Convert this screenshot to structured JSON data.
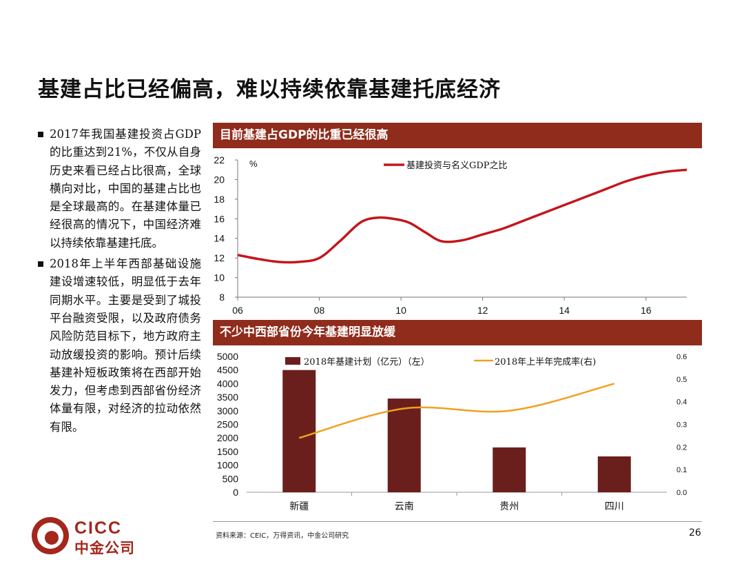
{
  "title": "基建占比已经偏高，难以持续依靠基建托底经济",
  "bullets": [
    "2017年我国基建投资占GDP的比重达到21%，不仅从自身历史来看已经占比很高，全球横向对比，中国的基建占比也是全球最高的。在基建体量已经很高的情况下，中国经济难以持续依靠基建托底。",
    "2018年上半年西部基础设施建设增速较低，明显低于去年同期水平。主要是受到了城投平台融资受限，以及政府债务风险防范目标下，地方政府主动放缓投资的影响。预计后续基建补短板政策将在西部开始发力，但考虑到西部省份经济体量有限，对经济的拉动依然有限。"
  ],
  "banner1": "目前基建占GDP的比重已经很高",
  "banner2": "不少中西部省份今年基建明显放缓",
  "footer": {
    "source": "资料来源：CEIC，万得资讯，中金公司研究",
    "page": "26"
  },
  "logo": {
    "line1": "CICC",
    "line2": "中金公司"
  },
  "colors": {
    "accent": "#8f2c1b",
    "line": "#c3161c",
    "bar": "#6b1f1c",
    "orange": "#f0a11e"
  },
  "chart_data": [
    {
      "type": "line",
      "title": "目前基建占GDP的比重已经很高",
      "ylabel": "%",
      "ylim": [
        8,
        22
      ],
      "yticks": [
        "8",
        "10",
        "12",
        "14",
        "16",
        "18",
        "20",
        "22"
      ],
      "xlim": [
        2006,
        2017
      ],
      "xticks": [
        {
          "value": 2006,
          "label": "06"
        },
        {
          "value": 2008,
          "label": "08"
        },
        {
          "value": 2010,
          "label": "10"
        },
        {
          "value": 2012,
          "label": "12"
        },
        {
          "value": 2014,
          "label": "14"
        },
        {
          "value": 2016,
          "label": "16"
        }
      ],
      "series": [
        {
          "name": "基建投资与名义GDP之比",
          "x": [
            2006,
            2006.5,
            2007,
            2007.5,
            2008,
            2008.5,
            2009,
            2009.4,
            2009.8,
            2010.2,
            2010.6,
            2011,
            2011.5,
            2012,
            2012.5,
            2013,
            2013.5,
            2014,
            2014.5,
            2015,
            2015.5,
            2016,
            2016.5,
            2017
          ],
          "values": [
            12.3,
            11.9,
            11.6,
            11.6,
            12.0,
            13.7,
            15.6,
            16.1,
            16.0,
            15.6,
            14.6,
            13.7,
            13.8,
            14.4,
            15.0,
            15.8,
            16.6,
            17.4,
            18.2,
            19.0,
            19.8,
            20.4,
            20.8,
            21.0
          ]
        }
      ],
      "legend_position": "top"
    },
    {
      "type": "bar",
      "title": "不少中西部省份今年基建明显放缓",
      "categories": [
        "新疆",
        "云南",
        "贵州",
        "四川"
      ],
      "ylim": [
        0,
        5000
      ],
      "yticks": [
        "0",
        "500",
        "1000",
        "1500",
        "2000",
        "2500",
        "3000",
        "3500",
        "4000",
        "4500",
        "5000"
      ],
      "y2lim": [
        0,
        0.6
      ],
      "y2ticks": [
        "0.0",
        "0.1",
        "0.2",
        "0.3",
        "0.4",
        "0.5",
        "0.6"
      ],
      "series": [
        {
          "name": "2018年基建计划（亿元）（左）",
          "values": [
            4500,
            3450,
            1650,
            1320
          ]
        },
        {
          "name": "2018年上半年完成率(右)",
          "values": [
            0.24,
            0.37,
            0.36,
            0.48
          ]
        }
      ],
      "legend_position": "top"
    }
  ]
}
